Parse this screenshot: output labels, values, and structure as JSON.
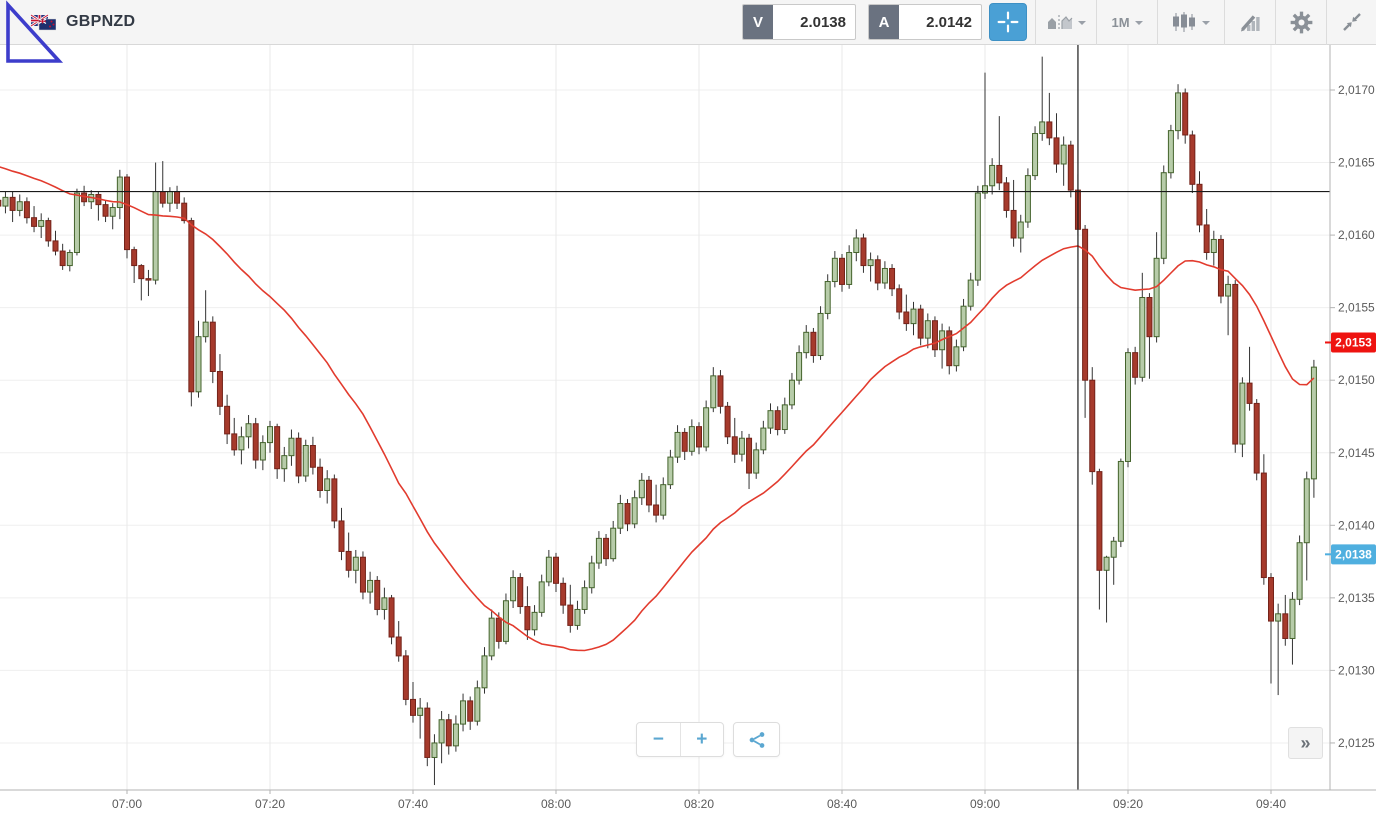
{
  "toolbar": {
    "symbol": "GBPNZD",
    "sell": {
      "tag": "V",
      "price": "2.0138"
    },
    "buy": {
      "tag": "A",
      "price": "2.0142"
    },
    "timeframe": "1M"
  },
  "controls": {
    "zoom_out": "−",
    "zoom_in": "+",
    "more": "»"
  },
  "chart_data": {
    "type": "candlestick",
    "symbol": "GBPNZD",
    "interval": "1m",
    "start_time": "06:42",
    "price_base": 2.0,
    "pip_scale": 0.0001,
    "ylim": [
      2.0122,
      2.0173
    ],
    "grid": true,
    "colors": {
      "up_fill": "#b7cca9",
      "up_stroke": "#44632c",
      "down_fill": "#a63a2c",
      "down_stroke": "#74231a",
      "wick": "#333333",
      "grid_h": "#efefef",
      "grid_v": "#e9e9e9",
      "axis": "#b3b3b3",
      "label": "#5a5a5a",
      "ref_line": "#1a1a1a"
    },
    "candles_ohlc_pips": [
      [
        162.4,
        163.1,
        161.2,
        162.0
      ],
      [
        162.0,
        163.0,
        161.5,
        162.6
      ],
      [
        162.6,
        163.0,
        160.9,
        161.7
      ],
      [
        161.7,
        162.8,
        161.3,
        162.3
      ],
      [
        162.3,
        162.6,
        160.8,
        161.2
      ],
      [
        161.2,
        162.0,
        160.2,
        160.6
      ],
      [
        160.6,
        161.5,
        159.8,
        161.0
      ],
      [
        161.0,
        161.2,
        159.2,
        159.6
      ],
      [
        159.6,
        160.3,
        158.6,
        158.9
      ],
      [
        158.9,
        159.4,
        157.6,
        157.9
      ],
      [
        157.9,
        159.0,
        157.5,
        158.8
      ],
      [
        158.8,
        163.2,
        158.6,
        162.9
      ],
      [
        162.9,
        163.4,
        162.0,
        162.3
      ],
      [
        162.3,
        163.1,
        161.8,
        162.8
      ],
      [
        162.8,
        163.0,
        161.0,
        162.1
      ],
      [
        162.1,
        162.4,
        160.9,
        161.3
      ],
      [
        161.3,
        162.2,
        160.4,
        161.9
      ],
      [
        161.9,
        164.5,
        161.1,
        164.0
      ],
      [
        164.0,
        164.2,
        158.4,
        159.0
      ],
      [
        159.0,
        159.2,
        156.7,
        157.9
      ],
      [
        157.9,
        158.0,
        155.5,
        157.0
      ],
      [
        157.0,
        157.6,
        155.8,
        156.9
      ],
      [
        156.9,
        165.0,
        156.6,
        163.0
      ],
      [
        163.0,
        165.1,
        161.9,
        162.2
      ],
      [
        162.2,
        163.3,
        161.6,
        163.0
      ],
      [
        163.0,
        163.4,
        161.8,
        162.2
      ],
      [
        162.2,
        162.6,
        160.8,
        161.0
      ],
      [
        161.0,
        161.2,
        148.2,
        149.2
      ],
      [
        149.2,
        154.1,
        148.8,
        153.0
      ],
      [
        153.0,
        156.2,
        152.6,
        154.0
      ],
      [
        154.0,
        154.4,
        149.8,
        150.6
      ],
      [
        150.6,
        151.8,
        147.6,
        148.2
      ],
      [
        148.2,
        149.0,
        145.6,
        146.3
      ],
      [
        146.3,
        147.4,
        144.8,
        145.2
      ],
      [
        145.2,
        146.8,
        144.2,
        146.1
      ],
      [
        146.1,
        147.6,
        145.3,
        147.0
      ],
      [
        147.0,
        147.4,
        143.9,
        144.5
      ],
      [
        144.5,
        146.2,
        143.8,
        145.7
      ],
      [
        145.7,
        147.2,
        145.0,
        146.8
      ],
      [
        146.8,
        147.0,
        143.2,
        143.9
      ],
      [
        143.9,
        145.4,
        143.0,
        144.8
      ],
      [
        144.8,
        146.6,
        144.1,
        146.0
      ],
      [
        146.0,
        146.4,
        142.9,
        143.4
      ],
      [
        143.4,
        145.9,
        143.0,
        145.5
      ],
      [
        145.5,
        146.1,
        143.5,
        144.0
      ],
      [
        144.0,
        144.6,
        141.9,
        142.4
      ],
      [
        142.4,
        143.8,
        141.5,
        143.2
      ],
      [
        143.2,
        143.5,
        139.8,
        140.3
      ],
      [
        140.3,
        141.2,
        137.6,
        138.2
      ],
      [
        138.2,
        139.5,
        136.4,
        136.9
      ],
      [
        136.9,
        138.3,
        136.0,
        137.8
      ],
      [
        137.8,
        138.2,
        134.9,
        135.4
      ],
      [
        135.4,
        136.8,
        134.6,
        136.2
      ],
      [
        136.2,
        136.5,
        133.8,
        134.2
      ],
      [
        134.2,
        135.7,
        133.5,
        135.0
      ],
      [
        135.0,
        135.2,
        131.8,
        132.3
      ],
      [
        132.3,
        133.4,
        130.6,
        131.0
      ],
      [
        131.0,
        131.4,
        127.6,
        128.0
      ],
      [
        128.0,
        129.2,
        126.4,
        126.9
      ],
      [
        126.9,
        128.1,
        125.3,
        127.4
      ],
      [
        127.4,
        127.8,
        123.4,
        124.0
      ],
      [
        124.0,
        125.6,
        122.1,
        125.0
      ],
      [
        125.0,
        127.2,
        123.6,
        126.6
      ],
      [
        126.6,
        127.0,
        124.2,
        124.8
      ],
      [
        124.8,
        126.9,
        124.4,
        126.3
      ],
      [
        126.3,
        128.4,
        125.8,
        127.9
      ],
      [
        127.9,
        128.2,
        125.9,
        126.5
      ],
      [
        126.5,
        129.3,
        126.2,
        128.8
      ],
      [
        128.8,
        131.6,
        128.4,
        131.0
      ],
      [
        131.0,
        134.2,
        130.7,
        133.6
      ],
      [
        133.6,
        134.0,
        131.5,
        132.0
      ],
      [
        132.0,
        135.3,
        131.8,
        134.8
      ],
      [
        134.8,
        136.9,
        134.3,
        136.4
      ],
      [
        136.4,
        136.7,
        133.9,
        134.4
      ],
      [
        134.4,
        135.8,
        132.1,
        132.8
      ],
      [
        132.8,
        134.5,
        132.4,
        134.0
      ],
      [
        134.0,
        136.6,
        133.7,
        136.1
      ],
      [
        136.1,
        138.3,
        135.8,
        137.8
      ],
      [
        137.8,
        138.1,
        135.4,
        136.0
      ],
      [
        136.0,
        136.4,
        133.9,
        134.5
      ],
      [
        134.5,
        135.9,
        132.6,
        133.1
      ],
      [
        133.1,
        134.8,
        132.8,
        134.2
      ],
      [
        134.2,
        136.2,
        133.9,
        135.7
      ],
      [
        135.7,
        137.9,
        135.3,
        137.4
      ],
      [
        137.4,
        139.6,
        137.0,
        139.1
      ],
      [
        139.1,
        139.4,
        137.2,
        137.7
      ],
      [
        137.7,
        140.3,
        137.5,
        139.8
      ],
      [
        139.8,
        142.1,
        139.4,
        141.5
      ],
      [
        141.5,
        141.8,
        139.6,
        140.1
      ],
      [
        140.1,
        142.4,
        139.8,
        141.9
      ],
      [
        141.9,
        143.6,
        141.4,
        143.1
      ],
      [
        143.1,
        143.4,
        140.9,
        141.4
      ],
      [
        141.4,
        142.8,
        140.2,
        140.7
      ],
      [
        140.7,
        143.3,
        140.4,
        142.8
      ],
      [
        142.8,
        145.2,
        142.5,
        144.7
      ],
      [
        144.7,
        146.9,
        144.3,
        146.4
      ],
      [
        146.4,
        146.7,
        144.5,
        145.1
      ],
      [
        145.1,
        147.3,
        144.8,
        146.8
      ],
      [
        146.8,
        147.1,
        144.9,
        145.4
      ],
      [
        145.4,
        148.6,
        145.1,
        148.1
      ],
      [
        148.1,
        150.9,
        147.8,
        150.3
      ],
      [
        150.3,
        150.7,
        147.7,
        148.2
      ],
      [
        148.2,
        148.5,
        145.6,
        146.1
      ],
      [
        146.1,
        147.4,
        144.3,
        144.9
      ],
      [
        144.9,
        146.5,
        144.4,
        146.0
      ],
      [
        146.0,
        146.3,
        142.5,
        143.6
      ],
      [
        143.6,
        145.7,
        143.2,
        145.2
      ],
      [
        145.2,
        147.2,
        144.9,
        146.7
      ],
      [
        146.7,
        148.4,
        146.3,
        147.9
      ],
      [
        147.9,
        148.2,
        146.2,
        146.6
      ],
      [
        146.6,
        148.8,
        146.3,
        148.3
      ],
      [
        148.3,
        150.5,
        148.0,
        150.0
      ],
      [
        150.0,
        152.4,
        149.7,
        151.9
      ],
      [
        151.9,
        153.8,
        151.5,
        153.3
      ],
      [
        153.3,
        153.6,
        151.2,
        151.7
      ],
      [
        151.7,
        155.1,
        151.4,
        154.6
      ],
      [
        154.6,
        157.3,
        154.2,
        156.8
      ],
      [
        156.8,
        158.9,
        156.4,
        158.4
      ],
      [
        158.4,
        158.7,
        156.1,
        156.6
      ],
      [
        156.6,
        159.3,
        156.3,
        158.8
      ],
      [
        158.8,
        160.4,
        158.2,
        159.8
      ],
      [
        159.8,
        160.1,
        157.4,
        157.9
      ],
      [
        157.9,
        158.8,
        156.8,
        158.3
      ],
      [
        158.3,
        158.6,
        156.2,
        156.7
      ],
      [
        156.7,
        158.2,
        156.3,
        157.7
      ],
      [
        157.7,
        158.0,
        155.8,
        156.3
      ],
      [
        156.3,
        156.6,
        154.2,
        154.7
      ],
      [
        154.7,
        155.9,
        153.4,
        153.9
      ],
      [
        153.9,
        155.4,
        153.1,
        154.9
      ],
      [
        154.9,
        155.2,
        152.4,
        152.9
      ],
      [
        152.9,
        154.6,
        152.2,
        154.1
      ],
      [
        154.1,
        154.4,
        151.6,
        152.1
      ],
      [
        152.1,
        153.9,
        150.8,
        153.4
      ],
      [
        153.4,
        153.7,
        150.4,
        151.0
      ],
      [
        151.0,
        152.8,
        150.6,
        152.3
      ],
      [
        152.3,
        155.6,
        152.0,
        155.1
      ],
      [
        155.1,
        157.4,
        154.8,
        156.9
      ],
      [
        156.9,
        163.4,
        156.5,
        162.9
      ],
      [
        162.9,
        171.2,
        162.5,
        163.4
      ],
      [
        163.4,
        165.3,
        162.8,
        164.8
      ],
      [
        164.8,
        168.2,
        163.1,
        163.6
      ],
      [
        163.6,
        164.0,
        161.2,
        161.7
      ],
      [
        161.7,
        163.8,
        159.2,
        159.8
      ],
      [
        159.8,
        161.4,
        158.8,
        160.9
      ],
      [
        160.9,
        164.6,
        160.5,
        164.1
      ],
      [
        164.1,
        167.5,
        163.8,
        167.0
      ],
      [
        167.0,
        172.3,
        166.5,
        167.8
      ],
      [
        167.8,
        169.8,
        166.2,
        166.7
      ],
      [
        166.7,
        168.4,
        164.3,
        164.9
      ],
      [
        164.9,
        166.8,
        163.4,
        166.2
      ],
      [
        166.2,
        166.5,
        162.6,
        163.1
      ],
      [
        163.1,
        164.2,
        160.0,
        160.4
      ],
      [
        160.4,
        160.7,
        147.4,
        150.0
      ],
      [
        150.0,
        150.9,
        142.8,
        143.7
      ],
      [
        143.7,
        143.9,
        134.2,
        136.9
      ],
      [
        136.9,
        137.9,
        133.3,
        137.8
      ],
      [
        137.8,
        139.2,
        135.9,
        138.9
      ],
      [
        138.9,
        144.6,
        138.5,
        144.4
      ],
      [
        144.4,
        152.2,
        144.0,
        151.9
      ],
      [
        151.9,
        152.3,
        149.7,
        150.2
      ],
      [
        150.2,
        157.4,
        149.9,
        155.7
      ],
      [
        155.7,
        156.0,
        150.1,
        153.0
      ],
      [
        153.0,
        160.2,
        152.6,
        158.4
      ],
      [
        158.4,
        164.8,
        158.0,
        164.3
      ],
      [
        164.3,
        167.6,
        163.9,
        167.2
      ],
      [
        167.2,
        170.4,
        166.6,
        169.8
      ],
      [
        169.8,
        170.1,
        166.3,
        166.9
      ],
      [
        166.9,
        167.2,
        162.9,
        163.5
      ],
      [
        163.5,
        164.4,
        160.2,
        160.7
      ],
      [
        160.7,
        161.8,
        158.3,
        158.8
      ],
      [
        158.8,
        160.3,
        157.9,
        159.7
      ],
      [
        159.7,
        160.0,
        155.3,
        155.8
      ],
      [
        155.8,
        157.2,
        153.1,
        156.6
      ],
      [
        156.6,
        156.9,
        145.0,
        145.6
      ],
      [
        145.6,
        150.2,
        144.7,
        149.8
      ],
      [
        149.8,
        152.3,
        147.9,
        148.4
      ],
      [
        148.4,
        148.7,
        143.1,
        143.6
      ],
      [
        143.6,
        144.9,
        135.9,
        136.4
      ],
      [
        136.4,
        136.7,
        129.1,
        133.4
      ],
      [
        133.4,
        134.6,
        128.3,
        133.9
      ],
      [
        133.9,
        135.2,
        131.7,
        132.2
      ],
      [
        132.2,
        135.4,
        130.4,
        134.9
      ],
      [
        134.9,
        139.3,
        134.5,
        138.8
      ],
      [
        138.8,
        143.7,
        136.2,
        143.2
      ],
      [
        143.2,
        151.4,
        141.9,
        150.9
      ]
    ],
    "ma": {
      "period": 30,
      "color": "#e23b2e",
      "label": "2,0153",
      "pre_closes_pips": [
        167.0,
        166.8,
        166.5,
        166.3,
        166.2,
        166.0,
        165.8,
        165.7,
        165.5,
        165.4,
        165.2,
        165.1,
        165.0,
        164.8,
        164.7,
        164.6,
        164.5,
        164.4,
        164.3,
        164.2,
        164.1,
        164.0,
        163.9,
        163.8,
        163.6,
        163.4,
        163.2,
        163.0,
        162.7
      ]
    },
    "y_axis": {
      "ticks": [
        {
          "label": "2,0170",
          "pips": 170
        },
        {
          "label": "2,0165",
          "pips": 165
        },
        {
          "label": "2,0160",
          "pips": 160
        },
        {
          "label": "2,0155",
          "pips": 155
        },
        {
          "label": "2,0150",
          "pips": 150
        },
        {
          "label": "2,0145",
          "pips": 145
        },
        {
          "label": "2,0140",
          "pips": 140
        },
        {
          "label": "2,0135",
          "pips": 135
        },
        {
          "label": "2,0130",
          "pips": 130
        },
        {
          "label": "2,0125",
          "pips": 125
        }
      ]
    },
    "x_axis": {
      "labels": [
        "07:00",
        "07:20",
        "07:40",
        "08:00",
        "08:20",
        "08:40",
        "09:00",
        "09:20",
        "09:40"
      ]
    },
    "h_line_pips": 163.0,
    "v_line_time": "09:13",
    "axis_badges": [
      {
        "label": "2,0153",
        "pips": 152.6,
        "color": "#ee1310",
        "text_color": "#ffffff"
      },
      {
        "label": "2,0138",
        "pips": 138.0,
        "color": "#4fafdf",
        "text_color": "#ffffff"
      }
    ]
  }
}
